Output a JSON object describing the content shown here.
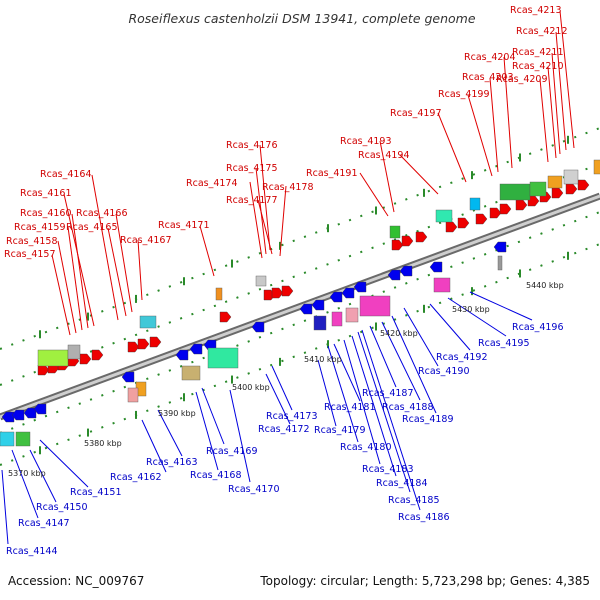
{
  "title": "Roseiflexus castenholzii DSM 13941, complete genome",
  "footer": {
    "accession": "Accession: NC_009767",
    "summary": "Topology: circular; Length: 5,723,298 bp; Genes: 4,385"
  },
  "scale_labels": [
    "5370 kbp",
    "5380 kbp",
    "5390 kbp",
    "5400 kbp",
    "5410 kbp",
    "5420 kbp",
    "5430 kbp",
    "5440 kbp"
  ],
  "forward_gene_labels": [
    "Rcas_4157",
    "Rcas_4158",
    "Rcas_4159",
    "Rcas_4160",
    "Rcas_4161",
    "Rcas_4164",
    "Rcas_4165",
    "Rcas_4166",
    "Rcas_4167",
    "Rcas_4171",
    "Rcas_4174",
    "Rcas_4175",
    "Rcas_4176",
    "Rcas_4177",
    "Rcas_4178",
    "Rcas_4191",
    "Rcas_4193",
    "Rcas_4194",
    "Rcas_4197",
    "Rcas_4199",
    "Rcas_4203",
    "Rcas_4204",
    "Rcas_4209",
    "Rcas_4210",
    "Rcas_4211",
    "Rcas_4212",
    "Rcas_4213"
  ],
  "reverse_gene_labels": [
    "Rcas_4144",
    "Rcas_4147",
    "Rcas_4150",
    "Rcas_4151",
    "Rcas_4162",
    "Rcas_4163",
    "Rcas_4168",
    "Rcas_4169",
    "Rcas_4170",
    "Rcas_4172",
    "Rcas_4173",
    "Rcas_4179",
    "Rcas_4180",
    "Rcas_4181",
    "Rcas_4183",
    "Rcas_4184",
    "Rcas_4185",
    "Rcas_4186",
    "Rcas_4187",
    "Rcas_4188",
    "Rcas_4189",
    "Rcas_4190",
    "Rcas_4192",
    "Rcas_4195",
    "Rcas_4196"
  ],
  "colors": {
    "forward_label": "#d00000",
    "reverse_label": "#0000c8",
    "forward_arrow": "#ee0000",
    "reverse_arrow": "#0000ee",
    "backbone": "#9a9a9a",
    "tick": "#2a8a2a"
  }
}
